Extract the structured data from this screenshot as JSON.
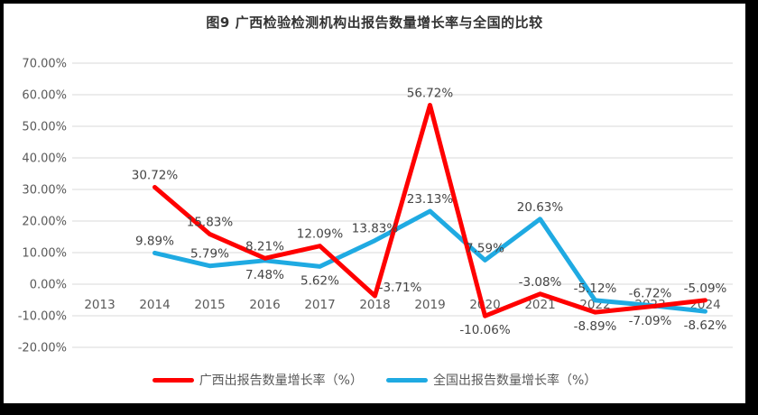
{
  "title": "图9 广西检验检测机构出报告数量增长率与全国的比较",
  "chart_data": {
    "type": "line",
    "categories": [
      "2013",
      "2014",
      "2015",
      "2016",
      "2017",
      "2018",
      "2019",
      "2020",
      "2021",
      "2022",
      "2023",
      "2024"
    ],
    "series": [
      {
        "name": "广西出报告数量增长率（%）",
        "color": "#FF0000",
        "values": [
          null,
          30.72,
          15.83,
          8.21,
          12.09,
          -3.71,
          56.72,
          -10.06,
          -3.08,
          -8.89,
          -7.09,
          -5.09
        ],
        "label_side": [
          null,
          "above",
          "above",
          "above",
          "above",
          "above-right",
          "above",
          "below",
          "above",
          "below",
          "below",
          "above"
        ]
      },
      {
        "name": "全国出报告数量增长率（%）",
        "color": "#1FAAE2",
        "values": [
          null,
          9.89,
          5.79,
          7.48,
          5.62,
          13.83,
          23.13,
          7.59,
          20.63,
          -5.12,
          -6.72,
          -8.62
        ],
        "label_side": [
          null,
          "above",
          "above",
          "below",
          "below",
          "above",
          "above",
          "above",
          "above",
          "above",
          "above",
          "below"
        ]
      }
    ],
    "ylim": [
      -20,
      70
    ],
    "ytick_step": 10,
    "tick_format": "0.00%",
    "data_label_format": "0.00%",
    "grid": true,
    "legend_position": "bottom",
    "colors": {
      "grid": "#D9D9D9",
      "axis_text": "#595959",
      "data_label_text": "#444444",
      "title_text": "#333333",
      "canvas": "#FFFFFF",
      "outer_frame": "#000000"
    }
  }
}
